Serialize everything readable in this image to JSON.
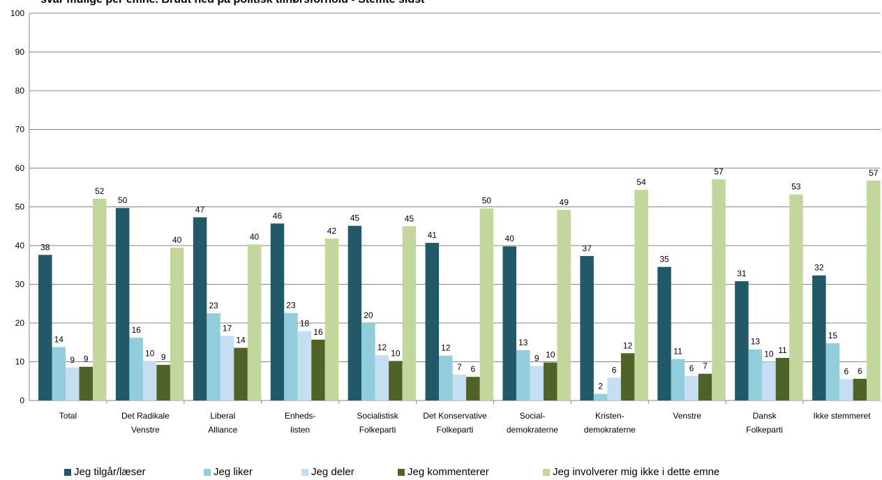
{
  "chart_data": {
    "type": "bar",
    "title": "svar mulige per emne. Brudt ned på politisk tilhørsforhold -  Stemte sidst",
    "ylim": [
      0,
      100
    ],
    "yticks": [
      "0",
      "10",
      "20",
      "30",
      "40",
      "50",
      "60",
      "70",
      "80",
      "90",
      "100"
    ],
    "grid": true,
    "legend_position": "bottom",
    "categories": [
      [
        "Total"
      ],
      [
        "Det Radikale",
        "Venstre"
      ],
      [
        "Liberal",
        "Alliance"
      ],
      [
        "Enheds-",
        "listen"
      ],
      [
        "Socialistisk",
        "Folkeparti"
      ],
      [
        "Det Konservative",
        "Folkeparti"
      ],
      [
        "Social-",
        "demokraterne"
      ],
      [
        "Kristen-",
        "demokraterne"
      ],
      [
        "Venstre"
      ],
      [
        "Dansk",
        "Folkeparti"
      ],
      [
        "Ikke stemmeret"
      ]
    ],
    "series": [
      {
        "name": "Jeg tilgår/læser",
        "color": "#215968",
        "values": [
          37.6,
          49.7,
          47.3,
          45.7,
          45.1,
          40.7,
          39.8,
          37.3,
          34.5,
          30.8,
          32.3
        ],
        "labels": [
          "38",
          "50",
          "47",
          "46",
          "45",
          "41",
          "40",
          "37",
          "35",
          "31",
          "32"
        ]
      },
      {
        "name": "Jeg liker",
        "color": "#92CDDC",
        "values": [
          13.8,
          16.2,
          22.5,
          22.6,
          20.0,
          11.6,
          13.0,
          1.7,
          10.7,
          13.2,
          14.8
        ],
        "labels": [
          "14",
          "16",
          "23",
          "23",
          "20",
          "12",
          "13",
          "2",
          "11",
          "13",
          "15"
        ]
      },
      {
        "name": "Jeg deler",
        "color": "#C6DEF2",
        "values": [
          8.5,
          10.2,
          16.7,
          17.9,
          11.7,
          6.7,
          8.9,
          5.9,
          6.3,
          10.0,
          5.5
        ],
        "labels": [
          "9",
          "10",
          "17",
          "18",
          "12",
          "7",
          "9",
          "6",
          "6",
          "10",
          "6"
        ]
      },
      {
        "name": "Jeg kommenterer",
        "color": "#4F6228",
        "values": [
          8.7,
          9.2,
          13.6,
          15.7,
          10.2,
          6.1,
          9.8,
          12.2,
          6.9,
          11.0,
          5.6
        ],
        "labels": [
          "9",
          "9",
          "14",
          "16",
          "10",
          "6",
          "10",
          "12",
          "7",
          "11",
          "6"
        ]
      },
      {
        "name": "Jeg involverer mig ikke i dette emne",
        "color": "#C3D69B",
        "values": [
          52.1,
          39.5,
          40.3,
          41.8,
          45.0,
          49.6,
          49.2,
          54.4,
          57.1,
          53.2,
          56.8
        ],
        "labels": [
          "52",
          "40",
          "40",
          "42",
          "45",
          "50",
          "49",
          "54",
          "57",
          "53",
          "57"
        ]
      }
    ]
  }
}
